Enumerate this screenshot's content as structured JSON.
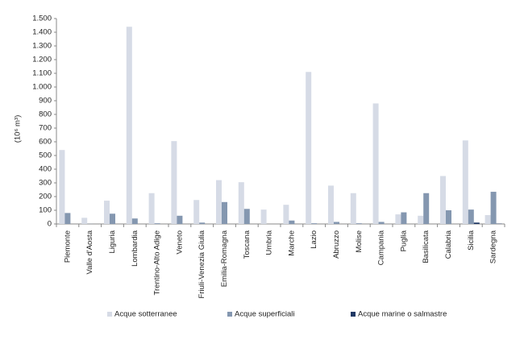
{
  "chart_data": {
    "type": "bar",
    "y_label": "(10⁶ m³)",
    "categories": [
      "Piemonte",
      "Valle d'Aosta",
      "Liguria",
      "Lombardia",
      "Trentino-Alto Adige",
      "Veneto",
      "Friuli-Venezia Giulia",
      "Emilia-Romagna",
      "Toscana",
      "Umbria",
      "Marche",
      "Lazio",
      "Abruzzo",
      "Molise",
      "Campania",
      "Puglia",
      "Basilicata",
      "Calabria",
      "Sicilia",
      "Sardegna"
    ],
    "series": [
      {
        "name": "Acque sotterranee",
        "color": "#d6dbe6",
        "values": [
          540,
          45,
          170,
          1440,
          225,
          605,
          175,
          320,
          305,
          105,
          140,
          1110,
          280,
          225,
          880,
          70,
          60,
          350,
          610,
          65
        ]
      },
      {
        "name": "Acque superficiali",
        "color": "#8497b0",
        "values": [
          80,
          1,
          75,
          40,
          5,
          60,
          10,
          160,
          110,
          0,
          25,
          5,
          15,
          5,
          15,
          85,
          225,
          100,
          105,
          235
        ]
      },
      {
        "name": "Acque marine o salmastre",
        "color": "#1f3864",
        "values": [
          0,
          0,
          0,
          0,
          0,
          0,
          0,
          0,
          0,
          0,
          0,
          0,
          0,
          0,
          0,
          0,
          0,
          0,
          10,
          2
        ]
      }
    ],
    "ylim": [
      0,
      1500
    ],
    "yticks": [
      0,
      100,
      200,
      300,
      400,
      500,
      600,
      700,
      800,
      900,
      {
        "value": 1000,
        "label": "1.000"
      },
      {
        "value": 1100,
        "label": "1.100"
      },
      {
        "value": 1200,
        "label": "1.200"
      },
      {
        "value": 1300,
        "label": "1.300"
      },
      {
        "value": 1400,
        "label": "1.400"
      },
      {
        "value": 1500,
        "label": "1.500"
      }
    ],
    "grid": false,
    "legend": "bottom"
  }
}
